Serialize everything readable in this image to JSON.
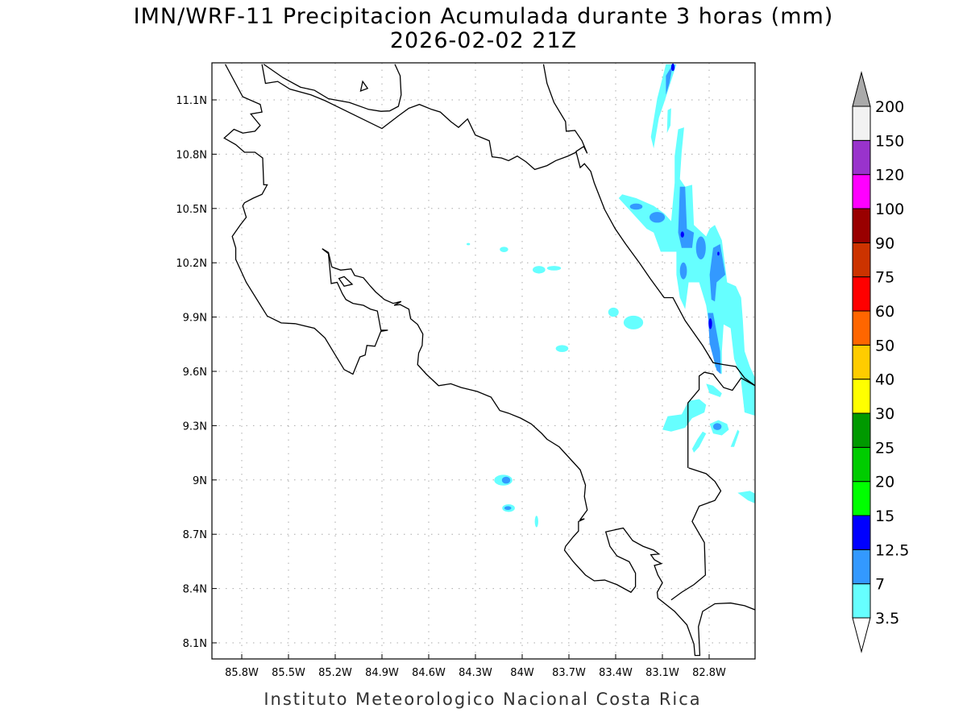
{
  "header": {
    "title": "IMN/WRF-11 Precipitacion Acumulada durante 3 horas (mm)",
    "valid_time": "2026-02-02 21Z"
  },
  "footer": "Instituto Meteorologico Nacional Costa Rica",
  "map": {
    "lon_labels": [
      "85.8W",
      "85.5W",
      "85.2W",
      "84.9W",
      "84.6W",
      "84.3W",
      "84W",
      "83.7W",
      "83.4W",
      "83.1W",
      "82.8W"
    ],
    "lat_labels": [
      "11.1N",
      "10.8N",
      "10.5N",
      "10.2N",
      "9.9N",
      "9.6N",
      "9.3N",
      "9N",
      "8.7N",
      "8.4N",
      "8.1N"
    ],
    "coast_color": "#000000",
    "grid_color": "#aaaaaa"
  },
  "colorbar": {
    "labels": [
      "3.5",
      "7",
      "12.5",
      "15",
      "20",
      "25",
      "30",
      "40",
      "50",
      "60",
      "75",
      "90",
      "100",
      "120",
      "150",
      "200"
    ],
    "colors": [
      "#66ffff",
      "#3399ff",
      "#0000ff",
      "#00ff00",
      "#00cc00",
      "#009900",
      "#ffff00",
      "#ffcc00",
      "#ff6600",
      "#ff0000",
      "#cc3300",
      "#990000",
      "#ff00ff",
      "#9933cc",
      "#f2f2f2"
    ],
    "over_color": "#aaaaaa",
    "under_color": "#ffffff"
  }
}
